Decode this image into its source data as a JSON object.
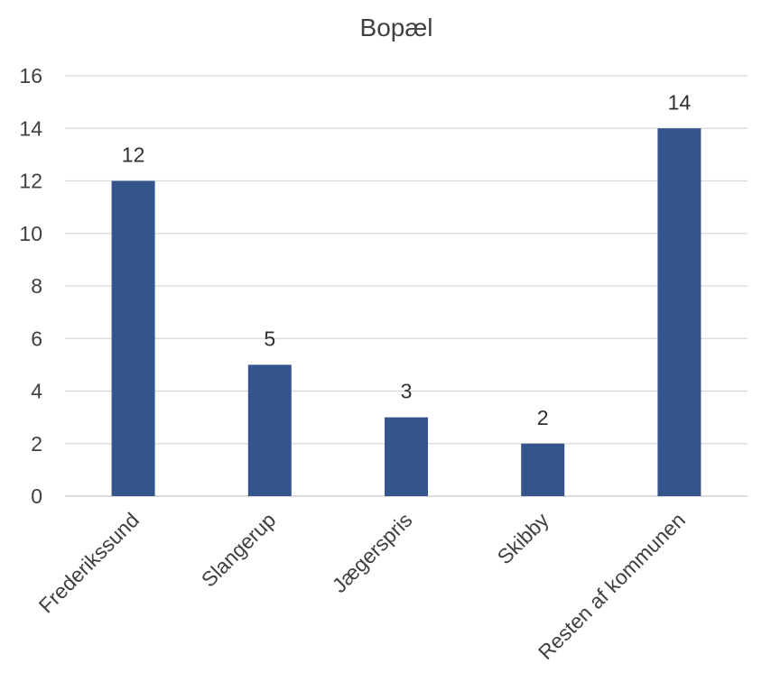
{
  "chart_data": {
    "type": "bar",
    "title": "Bopæl",
    "categories": [
      "Frederikssund",
      "Slangerup",
      "Jægerspris",
      "Skibby",
      "Resten af kommunen"
    ],
    "values": [
      12,
      5,
      3,
      2,
      14
    ],
    "ylim": [
      0,
      16
    ],
    "yticks": [
      0,
      2,
      4,
      6,
      8,
      10,
      12,
      14,
      16
    ],
    "xlabel": "",
    "ylabel": "",
    "grid": true,
    "legend": "none",
    "bar_color": "#34558b"
  }
}
